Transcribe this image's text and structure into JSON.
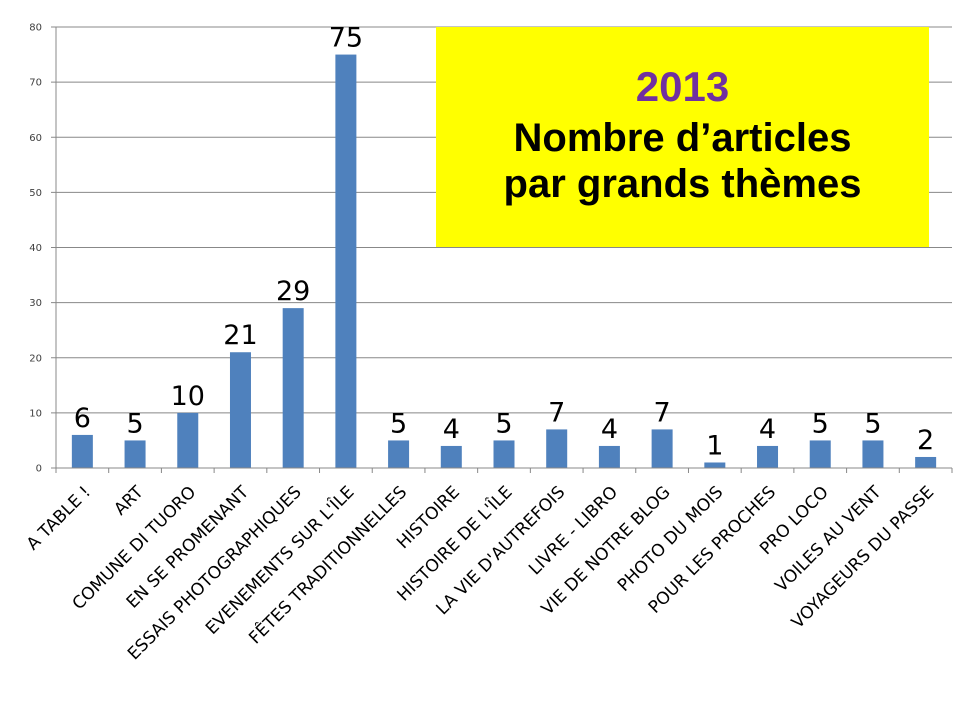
{
  "title": {
    "year": "2013",
    "line1": "Nombre d’articles",
    "line2": "par grands thèmes"
  },
  "colors": {
    "bar": "#4f81bd",
    "title_background": "#ffff00",
    "year_text": "#7030a0"
  },
  "chart_data": {
    "type": "bar",
    "title": "2013 Nombre d’articles par grands thèmes",
    "xlabel": "",
    "ylabel": "",
    "ylim": [
      0,
      80
    ],
    "yticks": [
      0,
      10,
      20,
      30,
      40,
      50,
      60,
      70,
      80
    ],
    "grid": true,
    "legend": "none",
    "categories": [
      "A TABLE !",
      "ART",
      "COMUNE DI TUORO",
      "EN SE PROMENANT",
      "ESSAIS PHOTOGRAPHIQUES",
      "EVENEMENTS SUR L'ÎLE",
      "FÊTES TRADITIONNELLES",
      "HISTOIRE",
      "HISTOIRE DE L'ÎLE",
      "LA VIE D'AUTREFOIS",
      "LIVRE - LIBRO",
      "VIE DE NOTRE BLOG",
      "PHOTO DU MOIS",
      "POUR LES PROCHES",
      "PRO LOCO",
      "VOILES AU VENT",
      "VOYAGEURS DU PASSE"
    ],
    "values": [
      6,
      5,
      10,
      21,
      29,
      75,
      5,
      4,
      5,
      7,
      4,
      7,
      1,
      4,
      5,
      5,
      2
    ]
  }
}
